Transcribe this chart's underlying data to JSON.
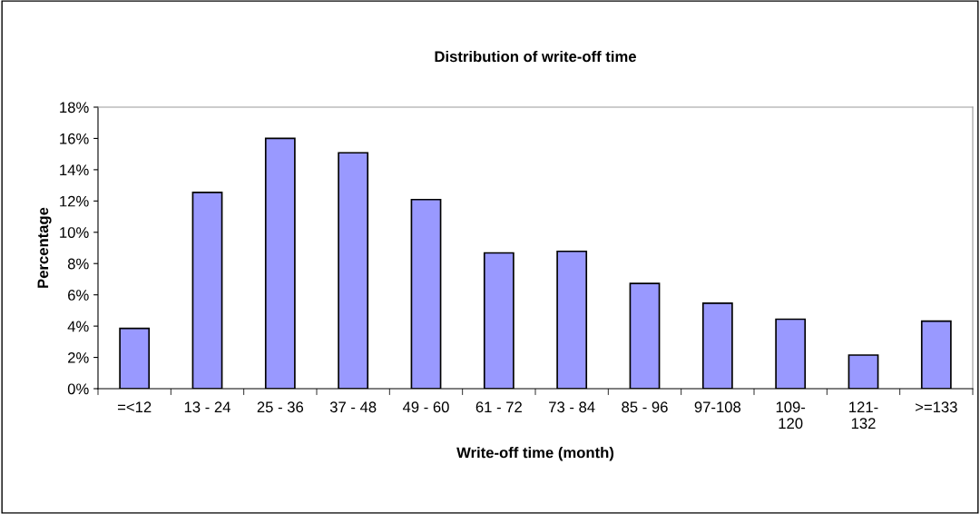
{
  "chart_data": {
    "type": "bar",
    "title": "Distribution of write-off time",
    "xlabel": "Write-off time (month)",
    "ylabel": "Percentage",
    "categories": [
      "=<12",
      "13 - 24",
      "25 - 36",
      "37 - 48",
      "49 - 60",
      "61 - 72",
      "73 - 84",
      "85 - 96",
      "97-108",
      "109-\n120",
      "121-\n132",
      ">=133"
    ],
    "values": [
      3.85,
      12.55,
      16.0,
      15.08,
      12.09,
      8.68,
      8.78,
      6.73,
      5.47,
      4.44,
      2.15,
      4.32
    ],
    "color": "#9999ff",
    "ylim": [
      0,
      18
    ],
    "yticks": [
      {
        "value": 0,
        "label": "0%"
      },
      {
        "value": 2,
        "label": "2%"
      },
      {
        "value": 4,
        "label": "4%"
      },
      {
        "value": 6,
        "label": "6%"
      },
      {
        "value": 8,
        "label": "8%"
      },
      {
        "value": 10,
        "label": "10%"
      },
      {
        "value": 12,
        "label": "12%"
      },
      {
        "value": 14,
        "label": "14%"
      },
      {
        "value": 16,
        "label": "16%"
      },
      {
        "value": 18,
        "label": "18%"
      }
    ],
    "grid": false,
    "legend": false
  }
}
